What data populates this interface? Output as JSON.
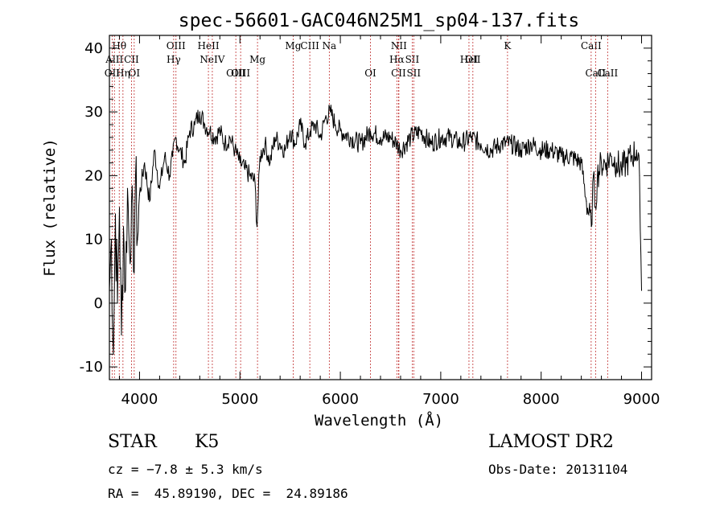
{
  "chart_data": {
    "type": "line",
    "title": "spec-56601-GAC046N25M1_sp04-137.fits",
    "xlabel": "Wavelength (Å)",
    "ylabel": "Flux (relative)",
    "xlim": [
      3700,
      9100
    ],
    "ylim": [
      -12,
      42
    ],
    "xticks": [
      4000,
      5000,
      6000,
      7000,
      8000,
      9000
    ],
    "yticks": [
      -10,
      0,
      10,
      20,
      30,
      40
    ],
    "grid": false,
    "series": [
      {
        "x": [
          3700,
          3720,
          3740,
          3760,
          3780,
          3800,
          3820,
          3840,
          3860,
          3880,
          3900,
          3920,
          3940,
          3960,
          3980,
          4000,
          4050,
          4100,
          4150,
          4200,
          4250,
          4300,
          4330,
          4360,
          4400,
          4450,
          4500,
          4550,
          4600,
          4650,
          4700,
          4750,
          4800,
          4850,
          4900,
          4950,
          5000,
          5050,
          5100,
          5150,
          5170,
          5200,
          5250,
          5300,
          5350,
          5400,
          5450,
          5500,
          5550,
          5600,
          5650,
          5700,
          5750,
          5800,
          5850,
          5900,
          5950,
          6000,
          6100,
          6200,
          6300,
          6400,
          6500,
          6563,
          6600,
          6700,
          6800,
          6900,
          7000,
          7100,
          7200,
          7300,
          7400,
          7500,
          7600,
          7700,
          7800,
          7900,
          8000,
          8100,
          8200,
          8300,
          8400,
          8450,
          8500,
          8520,
          8540,
          8560,
          8600,
          8650,
          8700,
          8750,
          8800,
          8850,
          8900,
          8950,
          8980,
          9000
        ],
        "y": [
          2,
          10,
          -8,
          14,
          0,
          15,
          -5,
          12,
          2,
          18,
          8,
          16,
          5,
          20,
          10,
          17,
          22,
          16,
          24,
          18,
          23,
          20,
          23,
          26,
          24,
          22,
          27,
          28,
          30,
          28,
          27,
          26,
          27,
          25,
          26,
          24,
          22,
          21,
          20,
          19,
          12,
          23,
          25,
          22,
          26,
          25,
          24,
          27,
          25,
          28,
          25,
          27,
          28,
          26,
          29,
          30,
          28,
          27,
          26,
          25,
          27,
          26,
          26,
          25,
          24,
          26,
          27,
          25,
          26,
          26,
          25,
          26,
          25,
          24,
          25,
          25,
          24,
          25,
          24,
          24,
          23,
          23,
          22,
          16,
          12,
          20,
          15,
          20,
          22,
          22,
          23,
          22,
          21,
          22,
          23,
          24,
          20,
          2
        ]
      }
    ],
    "line_markers": [
      {
        "label": "Hθ",
        "x": 3798,
        "row": 0
      },
      {
        "label": "AlII",
        "x": 3750,
        "row": 1
      },
      {
        "label": "OII",
        "x": 3727,
        "row": 2
      },
      {
        "label": "Hη",
        "x": 3835,
        "row": 2
      },
      {
        "label": "CII",
        "x": 3920,
        "row": 1
      },
      {
        "label": "OI",
        "x": 3947,
        "row": 2
      },
      {
        "label": "OIII",
        "x": 4363,
        "row": 0
      },
      {
        "label": "Hγ",
        "x": 4340,
        "row": 1
      },
      {
        "label": "HeII",
        "x": 4686,
        "row": 0
      },
      {
        "label": "NeIV",
        "x": 4725,
        "row": 1
      },
      {
        "label": "OIII",
        "x": 4959,
        "row": 2
      },
      {
        "label": "OIII",
        "x": 5007,
        "row": 2
      },
      {
        "label": "Mg",
        "x": 5175,
        "row": 1
      },
      {
        "label": "Mg",
        "x": 5530,
        "row": 0
      },
      {
        "label": "CIII",
        "x": 5696,
        "row": 0
      },
      {
        "label": "Na",
        "x": 5890,
        "row": 0
      },
      {
        "label": "OI",
        "x": 6300,
        "row": 2
      },
      {
        "label": "NII",
        "x": 6583,
        "row": 0
      },
      {
        "label": "Hα",
        "x": 6563,
        "row": 1
      },
      {
        "label": "SII",
        "x": 6716,
        "row": 1
      },
      {
        "label": "SII",
        "x": 6731,
        "row": 2
      },
      {
        "label": "CII",
        "x": 6580,
        "row": 2
      },
      {
        "label": "OII",
        "x": 7320,
        "row": 1
      },
      {
        "label": "K",
        "x": 7665,
        "row": 0
      },
      {
        "label": "HeI",
        "x": 7281,
        "row": 1
      },
      {
        "label": "CaII",
        "x": 8498,
        "row": 0
      },
      {
        "label": "CaII",
        "x": 8542,
        "row": 2
      },
      {
        "label": "CaII",
        "x": 8662,
        "row": 2
      }
    ]
  },
  "info": {
    "object_type": "STAR",
    "subclass": "K5",
    "survey": "LAMOST DR2",
    "cz": "cz = −7.8 ± 5.3 km/s",
    "obs_date": "Obs-Date: 20131104",
    "coords": "RA =  45.89190, DEC =  24.89186"
  }
}
